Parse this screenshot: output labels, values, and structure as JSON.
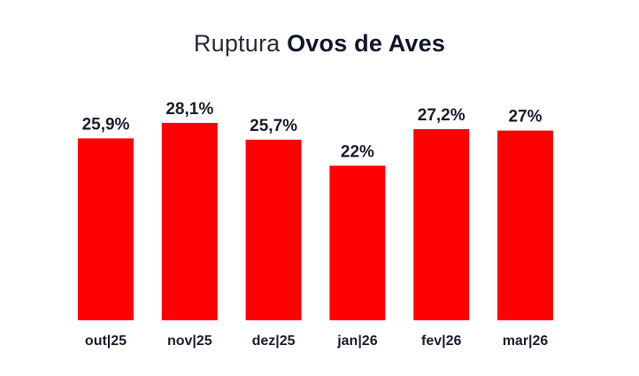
{
  "chart_data": {
    "type": "bar",
    "title_prefix": "Ruptura",
    "title_main": "Ovos de Aves",
    "categories": [
      "out|25",
      "nov|25",
      "dez|25",
      "jan|26",
      "fev|26",
      "mar|26"
    ],
    "values": [
      25.9,
      28.1,
      25.7,
      22,
      27.2,
      27
    ],
    "value_labels": [
      "25,9%",
      "28,1%",
      "25,7%",
      "22%",
      "27,2%",
      "27%"
    ],
    "bar_color": "#ff0000",
    "grid": false,
    "legend": "none"
  }
}
